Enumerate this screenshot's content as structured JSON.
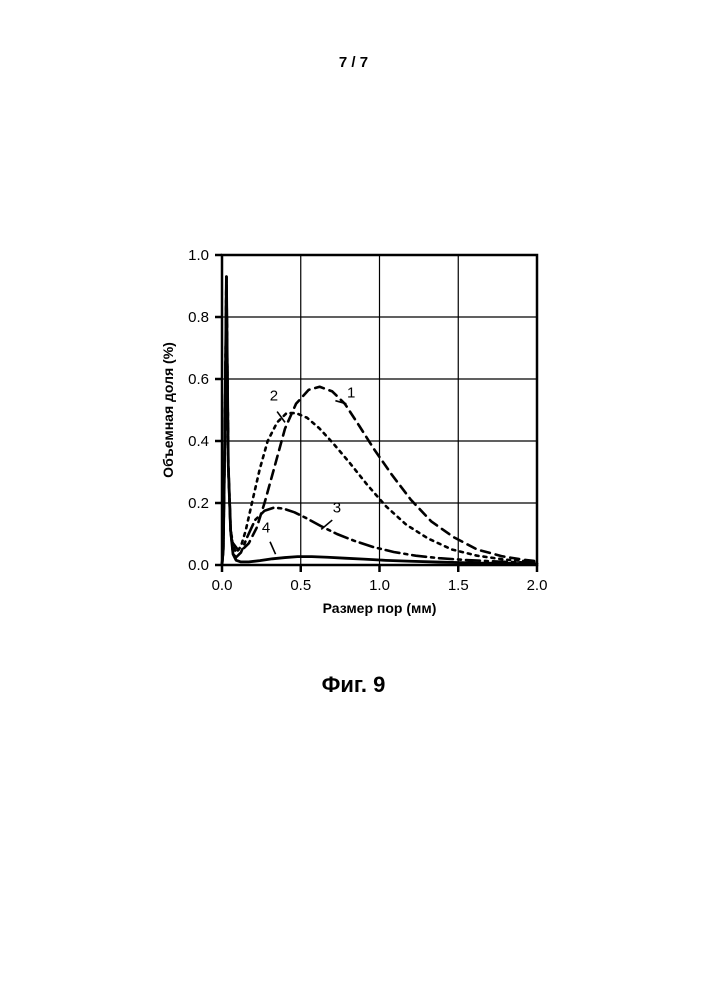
{
  "page_number": "7 / 7",
  "caption": "Фиг. 9",
  "chart": {
    "type": "line",
    "xlabel": "Размер пор (мм)",
    "ylabel": "Объемная доля (%)",
    "label_fontsize": 14,
    "label_fontweight": "bold",
    "tick_fontsize": 15,
    "xlim": [
      0.0,
      2.0
    ],
    "ylim": [
      0.0,
      1.0
    ],
    "xticks": [
      0.0,
      0.5,
      1.0,
      1.5,
      2.0
    ],
    "yticks": [
      0.0,
      0.2,
      0.4,
      0.6,
      0.8,
      1.0
    ],
    "background_color": "#ffffff",
    "axis_color": "#000000",
    "axis_width": 2.5,
    "grid_color": "#000000",
    "grid_width": 1.2,
    "tick_length": 7,
    "series": [
      {
        "id": 1,
        "label": "1",
        "label_xy": [
          0.82,
          0.54
        ],
        "leader_from": [
          0.79,
          0.52
        ],
        "leader_to": [
          0.72,
          0.53
        ],
        "color": "#000000",
        "line_width": 2.6,
        "dash": "9,6",
        "data": [
          [
            0.0,
            0.0
          ],
          [
            0.008,
            0.05
          ],
          [
            0.018,
            0.4
          ],
          [
            0.028,
            0.93
          ],
          [
            0.04,
            0.32
          ],
          [
            0.055,
            0.11
          ],
          [
            0.07,
            0.07
          ],
          [
            0.1,
            0.05
          ],
          [
            0.13,
            0.05
          ],
          [
            0.17,
            0.07
          ],
          [
            0.22,
            0.12
          ],
          [
            0.27,
            0.2
          ],
          [
            0.33,
            0.31
          ],
          [
            0.4,
            0.44
          ],
          [
            0.47,
            0.52
          ],
          [
            0.55,
            0.565
          ],
          [
            0.62,
            0.575
          ],
          [
            0.7,
            0.56
          ],
          [
            0.78,
            0.52
          ],
          [
            0.87,
            0.45
          ],
          [
            0.97,
            0.37
          ],
          [
            1.08,
            0.29
          ],
          [
            1.2,
            0.21
          ],
          [
            1.33,
            0.14
          ],
          [
            1.47,
            0.09
          ],
          [
            1.62,
            0.05
          ],
          [
            1.78,
            0.028
          ],
          [
            1.9,
            0.018
          ],
          [
            2.0,
            0.012
          ]
        ]
      },
      {
        "id": 2,
        "label": "2",
        "label_xy": [
          0.33,
          0.53
        ],
        "leader_from": [
          0.35,
          0.495
        ],
        "leader_to": [
          0.4,
          0.46
        ],
        "color": "#000000",
        "line_width": 2.6,
        "dash": "3,5",
        "data": [
          [
            0.0,
            0.0
          ],
          [
            0.008,
            0.05
          ],
          [
            0.018,
            0.4
          ],
          [
            0.028,
            0.93
          ],
          [
            0.04,
            0.32
          ],
          [
            0.055,
            0.11
          ],
          [
            0.07,
            0.06
          ],
          [
            0.09,
            0.04
          ],
          [
            0.12,
            0.06
          ],
          [
            0.15,
            0.11
          ],
          [
            0.19,
            0.2
          ],
          [
            0.24,
            0.31
          ],
          [
            0.29,
            0.4
          ],
          [
            0.35,
            0.46
          ],
          [
            0.41,
            0.49
          ],
          [
            0.47,
            0.49
          ],
          [
            0.54,
            0.475
          ],
          [
            0.62,
            0.44
          ],
          [
            0.71,
            0.39
          ],
          [
            0.81,
            0.33
          ],
          [
            0.92,
            0.26
          ],
          [
            1.04,
            0.19
          ],
          [
            1.17,
            0.13
          ],
          [
            1.31,
            0.085
          ],
          [
            1.46,
            0.05
          ],
          [
            1.62,
            0.03
          ],
          [
            1.8,
            0.017
          ],
          [
            2.0,
            0.01
          ]
        ]
      },
      {
        "id": 3,
        "label": "3",
        "label_xy": [
          0.73,
          0.17
        ],
        "leader_from": [
          0.7,
          0.145
        ],
        "leader_to": [
          0.63,
          0.115
        ],
        "color": "#000000",
        "line_width": 2.6,
        "dash": "14,5,3,5",
        "data": [
          [
            0.0,
            0.0
          ],
          [
            0.008,
            0.05
          ],
          [
            0.018,
            0.4
          ],
          [
            0.028,
            0.93
          ],
          [
            0.04,
            0.32
          ],
          [
            0.055,
            0.11
          ],
          [
            0.07,
            0.035
          ],
          [
            0.09,
            0.025
          ],
          [
            0.12,
            0.04
          ],
          [
            0.16,
            0.09
          ],
          [
            0.21,
            0.145
          ],
          [
            0.27,
            0.175
          ],
          [
            0.33,
            0.185
          ],
          [
            0.39,
            0.182
          ],
          [
            0.46,
            0.17
          ],
          [
            0.54,
            0.15
          ],
          [
            0.63,
            0.125
          ],
          [
            0.73,
            0.1
          ],
          [
            0.84,
            0.078
          ],
          [
            0.96,
            0.058
          ],
          [
            1.09,
            0.042
          ],
          [
            1.23,
            0.03
          ],
          [
            1.38,
            0.022
          ],
          [
            1.55,
            0.016
          ],
          [
            1.75,
            0.011
          ],
          [
            2.0,
            0.007
          ]
        ]
      },
      {
        "id": 4,
        "label": "4",
        "label_xy": [
          0.28,
          0.105
        ],
        "leader_from": [
          0.305,
          0.075
        ],
        "leader_to": [
          0.34,
          0.035
        ],
        "color": "#000000",
        "line_width": 2.8,
        "dash": "none",
        "data": [
          [
            0.0,
            0.0
          ],
          [
            0.008,
            0.05
          ],
          [
            0.018,
            0.4
          ],
          [
            0.028,
            0.93
          ],
          [
            0.04,
            0.32
          ],
          [
            0.055,
            0.11
          ],
          [
            0.07,
            0.035
          ],
          [
            0.09,
            0.015
          ],
          [
            0.12,
            0.01
          ],
          [
            0.17,
            0.01
          ],
          [
            0.24,
            0.014
          ],
          [
            0.32,
            0.02
          ],
          [
            0.4,
            0.024
          ],
          [
            0.48,
            0.027
          ],
          [
            0.57,
            0.027
          ],
          [
            0.67,
            0.025
          ],
          [
            0.78,
            0.022
          ],
          [
            0.9,
            0.019
          ],
          [
            1.04,
            0.015
          ],
          [
            1.2,
            0.012
          ],
          [
            1.4,
            0.009
          ],
          [
            1.65,
            0.006
          ],
          [
            2.0,
            0.004
          ]
        ]
      }
    ]
  }
}
